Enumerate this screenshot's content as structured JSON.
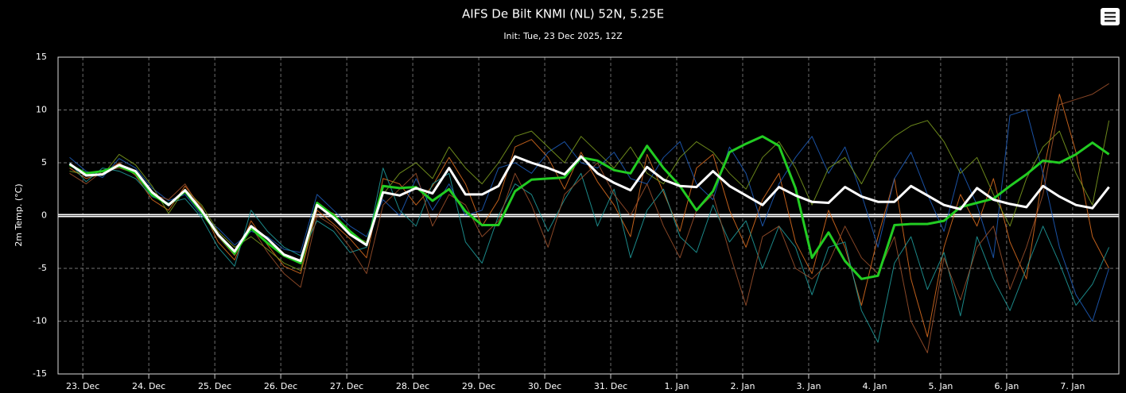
{
  "chart_data": {
    "type": "line",
    "title": "AIFS De Bilt KNMI (NL) 52N, 5.25E",
    "subtitle": "Init: Tue, 23 Dec 2025, 12Z",
    "y_label": "2m Temp. (°C)",
    "xlim": [
      -0.7,
      63.6
    ],
    "xticks": [
      {
        "value": 0.8,
        "label": "23. Dec"
      },
      {
        "value": 4.8,
        "label": "24. Dec"
      },
      {
        "value": 8.8,
        "label": "25. Dec"
      },
      {
        "value": 12.8,
        "label": "26. Dec"
      },
      {
        "value": 16.8,
        "label": "27. Dec"
      },
      {
        "value": 20.8,
        "label": "28. Dec"
      },
      {
        "value": 24.8,
        "label": "29. Dec"
      },
      {
        "value": 28.8,
        "label": "30. Dec"
      },
      {
        "value": 32.8,
        "label": "31. Dec"
      },
      {
        "value": 36.8,
        "label": "1. Jan"
      },
      {
        "value": 40.8,
        "label": "2. Jan"
      },
      {
        "value": 44.8,
        "label": "3. Jan"
      },
      {
        "value": 48.8,
        "label": "4. Jan"
      },
      {
        "value": 52.8,
        "label": "5. Jan"
      },
      {
        "value": 56.8,
        "label": "6. Jan"
      },
      {
        "value": 60.8,
        "label": "7. Jan"
      }
    ],
    "ylim": [
      -15,
      15
    ],
    "yticks": [
      -15,
      -10,
      -5,
      0,
      5,
      10,
      15
    ],
    "grid": true,
    "series": [
      {
        "color": "#e07020",
        "width": 1,
        "values": [
          4.5,
          3.5,
          4.0,
          5.0,
          3.8,
          1.5,
          0.5,
          2.8,
          0.8,
          -2.5,
          -4.2,
          -0.5,
          -2.8,
          -4.8,
          -5.5,
          0.5,
          -0.8,
          -2.2,
          -4.0,
          3.5,
          3.0,
          1.0,
          2.8,
          5.5,
          3.0,
          -1.0,
          1.5,
          6.5,
          7.2,
          5.5,
          2.5,
          6.0,
          3.2,
          1.0,
          -2.0,
          5.8,
          2.2,
          -1.5,
          4.5,
          5.8,
          0.5,
          -3.0,
          1.5,
          4.0,
          -2.5,
          -5.5,
          0.5,
          -3.0,
          -8.5,
          -2.0,
          3.5,
          -6.0,
          -11.5,
          -3.0,
          2.0,
          -1.0,
          3.5,
          -2.5,
          -6.0,
          4.0,
          11.5,
          6.0,
          -2.0,
          -5.0
        ]
      },
      {
        "color": "#1f5fbf",
        "width": 1,
        "values": [
          5.5,
          4.2,
          3.6,
          5.4,
          4.5,
          2.6,
          1.4,
          2.0,
          0.0,
          -1.2,
          -2.8,
          -1.5,
          -2.0,
          -3.2,
          -3.5,
          2.0,
          0.5,
          -1.0,
          -2.0,
          1.5,
          0.0,
          3.5,
          0.5,
          3.0,
          0.0,
          0.5,
          4.5,
          5.0,
          4.0,
          6.0,
          7.0,
          5.0,
          4.5,
          6.0,
          3.5,
          3.0,
          5.5,
          7.0,
          3.0,
          1.5,
          6.5,
          4.0,
          -1.0,
          3.0,
          5.5,
          7.5,
          4.0,
          6.5,
          2.0,
          -3.0,
          3.5,
          6.0,
          2.0,
          -1.5,
          4.5,
          1.0,
          -4.0,
          9.5,
          10.0,
          4.0,
          -3.0,
          -7.5,
          -10.0,
          -5.0
        ]
      },
      {
        "color": "#20a0a0",
        "width": 1,
        "values": [
          5.0,
          3.2,
          4.5,
          4.2,
          3.5,
          1.8,
          1.2,
          1.6,
          -0.2,
          -3.0,
          -4.8,
          0.5,
          -1.5,
          -3.0,
          -3.8,
          -0.5,
          -1.5,
          -3.5,
          -3.0,
          4.5,
          0.5,
          -1.0,
          3.0,
          4.0,
          -2.5,
          -4.5,
          0.0,
          3.0,
          2.0,
          -1.5,
          1.5,
          4.0,
          -1.0,
          2.5,
          -4.0,
          0.5,
          2.5,
          -2.0,
          -3.5,
          1.0,
          -2.5,
          -0.5,
          -5.0,
          -1.0,
          -3.0,
          -7.5,
          -3.0,
          -2.5,
          -9.0,
          -12.0,
          -4.5,
          -2.0,
          -7.0,
          -3.5,
          -9.5,
          -2.0,
          -6.0,
          -9.0,
          -5.0,
          -1.0,
          -4.5,
          -8.5,
          -6.5,
          -3.0
        ]
      },
      {
        "color": "#7fa020",
        "width": 1,
        "values": [
          4.2,
          3.9,
          3.8,
          5.8,
          4.8,
          2.8,
          0.2,
          2.5,
          1.0,
          -1.5,
          -3.0,
          -2.0,
          -3.2,
          -4.5,
          -5.2,
          0.8,
          0.2,
          -1.8,
          -2.5,
          2.0,
          4.0,
          5.0,
          3.5,
          6.5,
          4.5,
          3.0,
          5.0,
          7.5,
          8.0,
          6.5,
          5.0,
          7.5,
          6.0,
          4.5,
          6.5,
          4.0,
          3.0,
          5.5,
          7.0,
          6.0,
          4.0,
          2.5,
          5.5,
          7.0,
          4.5,
          1.0,
          4.5,
          5.5,
          3.0,
          6.0,
          7.5,
          8.5,
          9.0,
          7.0,
          4.0,
          5.5,
          2.0,
          -1.0,
          3.5,
          6.5,
          8.0,
          4.0,
          1.0,
          9.0
        ]
      },
      {
        "color": "#a0522d",
        "width": 1,
        "values": [
          4.0,
          3.0,
          4.2,
          4.5,
          4.0,
          2.0,
          1.5,
          3.0,
          0.5,
          -2.0,
          -3.8,
          -1.0,
          -3.5,
          -5.5,
          -6.8,
          0.0,
          -1.0,
          -3.0,
          -5.5,
          1.0,
          2.5,
          4.0,
          -1.0,
          2.0,
          1.0,
          -2.0,
          -0.5,
          4.0,
          1.0,
          -3.0,
          2.0,
          3.5,
          5.0,
          2.0,
          0.0,
          3.0,
          -1.0,
          -4.0,
          0.5,
          2.0,
          -3.5,
          -8.5,
          -2.0,
          -1.0,
          -5.0,
          -6.0,
          -4.5,
          -1.0,
          -4.0,
          -5.5,
          -2.0,
          -10.0,
          -13.0,
          -4.0,
          -8.0,
          -3.0,
          -1.0,
          -7.0,
          -3.0,
          2.0,
          10.5,
          11.0,
          11.5,
          12.5
        ]
      },
      {
        "color": "#22cc22",
        "width": 3,
        "values": [
          4.8,
          4.0,
          4.2,
          4.7,
          4.0,
          2.0,
          1.0,
          2.3,
          0.3,
          -1.8,
          -3.6,
          -1.2,
          -2.6,
          -3.8,
          -4.5,
          1.2,
          0.0,
          -1.5,
          -2.8,
          2.8,
          2.6,
          2.7,
          1.4,
          2.5,
          0.4,
          -0.9,
          -0.9,
          2.3,
          3.4,
          3.5,
          3.6,
          5.5,
          5.2,
          4.3,
          4.0,
          6.6,
          4.5,
          2.8,
          0.5,
          2.3,
          6.0,
          6.8,
          7.5,
          6.6,
          2.6,
          -4.0,
          -1.6,
          -4.3,
          -6.0,
          -5.7,
          -0.9,
          -0.8,
          -0.8,
          -0.5,
          0.8,
          1.2,
          1.6,
          2.8,
          3.9,
          5.2,
          5.0,
          5.8,
          6.9,
          5.8
        ]
      },
      {
        "color": "#ffffff",
        "width": 3,
        "values": [
          4.9,
          3.8,
          3.9,
          4.8,
          4.2,
          2.2,
          1.0,
          2.4,
          0.5,
          -1.8,
          -3.4,
          -1.0,
          -2.2,
          -3.7,
          -4.3,
          1.0,
          -0.2,
          -1.8,
          -2.8,
          2.2,
          1.9,
          2.6,
          2.1,
          4.5,
          2.0,
          2.0,
          2.8,
          5.6,
          5.0,
          4.5,
          3.9,
          5.6,
          4.0,
          3.1,
          2.4,
          4.6,
          3.4,
          2.8,
          2.7,
          4.2,
          2.8,
          1.9,
          1.0,
          2.7,
          1.9,
          1.3,
          1.2,
          2.7,
          1.8,
          1.3,
          1.3,
          2.8,
          1.9,
          1.0,
          0.6,
          2.6,
          1.5,
          1.1,
          0.8,
          2.8,
          1.8,
          1.0,
          0.7,
          2.7
        ]
      }
    ]
  }
}
